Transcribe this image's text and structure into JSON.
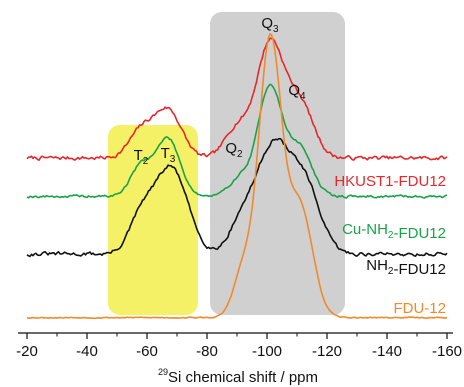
{
  "chart_data": {
    "type": "line",
    "xlabel_sup": "29",
    "xlabel": "Si chemical shift / ppm",
    "xlim": [
      -20,
      -160
    ],
    "xticks": [
      -20,
      -40,
      -60,
      -80,
      -100,
      -120,
      -140,
      -160
    ],
    "y_axis_shown": false,
    "highlights": [
      {
        "x_from": -47,
        "x_to": -77,
        "color": "#f2ee4b"
      },
      {
        "x_from": -81,
        "x_to": -126,
        "color": "#cdcdcf"
      }
    ],
    "peak_labels": [
      {
        "main": "T",
        "sub": "2",
        "x": -58
      },
      {
        "main": "T",
        "sub": "3",
        "x": -67
      },
      {
        "main": "Q",
        "sub": "2",
        "x": -89
      },
      {
        "main": "Q",
        "sub": "3",
        "x": -101
      },
      {
        "main": "Q",
        "sub": "4",
        "x": -110
      }
    ],
    "series": [
      {
        "name_parts": [
          {
            "t": "HKUST1-FDU12"
          }
        ],
        "color": "#e8262b",
        "baseline": 1.35,
        "peaks": [
          [
            -58,
            0.22,
            4.0
          ],
          [
            -67,
            0.4,
            4.5
          ],
          [
            -90,
            0.25,
            4.0
          ],
          [
            -101,
            0.95,
            4.5
          ],
          [
            -111,
            0.45,
            4.5
          ]
        ],
        "noise": 0.03,
        "seed": 7
      },
      {
        "name_parts": [
          {
            "t": "Cu-NH"
          },
          {
            "t": "2",
            "sub": true
          },
          {
            "t": "-FDU12"
          }
        ],
        "color": "#1aa24a",
        "baseline": 1.03,
        "peaks": [
          [
            -58,
            0.25,
            3.5
          ],
          [
            -67,
            0.48,
            4.0
          ],
          [
            -91,
            0.15,
            3.5
          ],
          [
            -101,
            0.92,
            4.0
          ],
          [
            -111,
            0.4,
            4.0
          ]
        ],
        "noise": 0.02,
        "seed": 19
      },
      {
        "name_parts": [
          {
            "t": "NH"
          },
          {
            "t": "2",
            "sub": true
          },
          {
            "t": "-FDU12"
          }
        ],
        "color": "#111111",
        "baseline": 0.55,
        "peaks": [
          [
            -58,
            0.28,
            4.0
          ],
          [
            -68,
            0.72,
            5.5
          ],
          [
            -91,
            0.2,
            4.0
          ],
          [
            -102,
            0.9,
            6.0
          ],
          [
            -113,
            0.5,
            5.0
          ]
        ],
        "noise": 0.03,
        "seed": 31
      },
      {
        "name_parts": [
          {
            "t": "FDU-12"
          }
        ],
        "color": "#f08a2a",
        "baseline": 0.02,
        "peaks": [
          [
            -92,
            0.38,
            3.2
          ],
          [
            -101,
            2.3,
            3.8
          ],
          [
            -111,
            0.92,
            4.2
          ]
        ],
        "noise": 0.008,
        "seed": 53
      }
    ]
  }
}
